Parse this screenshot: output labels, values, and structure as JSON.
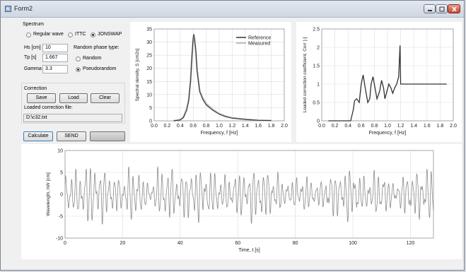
{
  "window": {
    "title": "Form2"
  },
  "spectrum": {
    "group_label": "Spectrum",
    "wave_types": [
      {
        "label": "Regular wave",
        "selected": false
      },
      {
        "label": "ITTC",
        "selected": false
      },
      {
        "label": "JONSWAP",
        "selected": true
      }
    ],
    "hs_label": "Hs [cm]",
    "hs_value": "10",
    "tp_label": "Tp [s]",
    "tp_value": "1.667",
    "gamma_label": "Gamma",
    "gamma_value": "3.3",
    "phase_label": "Random phase type:",
    "phase_options": [
      {
        "label": "Random",
        "selected": false
      },
      {
        "label": "Pseudorandom",
        "selected": true
      }
    ]
  },
  "correction": {
    "group_label": "Correction",
    "save_label": "Save",
    "load_label": "Load",
    "clear_label": "Clear",
    "file_label": "Loaded correction file:",
    "file_value": "D:\\c32.txt"
  },
  "actions": {
    "calculate_label": "Calculate",
    "send_label": "SEND"
  },
  "chart_data": [
    {
      "type": "line",
      "title": "",
      "xlabel": "Frequency, f [Hz]",
      "ylabel": "Spectral density, S [cm2s]",
      "xlim": [
        0,
        2.0
      ],
      "ylim": [
        0,
        35
      ],
      "xticks": [
        "0.0",
        "0.2",
        "0.4",
        "0.6",
        "0.8",
        "1.0",
        "1.2",
        "1.4",
        "1.6",
        "1.8",
        "2.0"
      ],
      "yticks": [
        "0",
        "5",
        "10",
        "15",
        "20",
        "25",
        "30",
        "35"
      ],
      "grid": true,
      "legend": "top-right",
      "series": [
        {
          "name": "Reference",
          "color": "#333333",
          "x": [
            0.3,
            0.4,
            0.45,
            0.5,
            0.53,
            0.56,
            0.58,
            0.6,
            0.61,
            0.62,
            0.64,
            0.66,
            0.7,
            0.75,
            0.8,
            0.9,
            1.0,
            1.1,
            1.2,
            1.4,
            1.6,
            1.8
          ],
          "y": [
            0,
            0.3,
            1.2,
            4.0,
            7.5,
            15,
            24,
            32,
            33,
            32,
            27,
            19,
            11,
            8,
            6,
            4,
            2.5,
            1.6,
            1.0,
            0.5,
            0.2,
            0.1
          ]
        },
        {
          "name": "Measured",
          "color": "#aaaaaa",
          "x": [
            0.3,
            0.4,
            0.45,
            0.5,
            0.53,
            0.56,
            0.58,
            0.6,
            0.61,
            0.62,
            0.64,
            0.66,
            0.7,
            0.75,
            0.8,
            0.9,
            1.0,
            1.1,
            1.2,
            1.4,
            1.6,
            1.8
          ],
          "y": [
            0,
            0.4,
            1.4,
            4.5,
            8.0,
            15.5,
            24.5,
            31,
            32,
            31,
            26.5,
            19.5,
            11.5,
            8.5,
            6.5,
            4.3,
            2.7,
            1.7,
            1.1,
            0.6,
            0.2,
            0.1
          ]
        }
      ]
    },
    {
      "type": "line",
      "title": "",
      "xlabel": "Frequency, f [Hz]",
      "ylabel": "Loaded correction coefficient, Corr [-]",
      "xlim": [
        0,
        2.0
      ],
      "ylim": [
        0,
        2.5
      ],
      "xticks": [
        "0.0",
        "0.2",
        "0.4",
        "0.6",
        "0.8",
        "1.0",
        "1.2",
        "1.4",
        "1.6",
        "1.8",
        "2.0"
      ],
      "yticks": [
        "0",
        "0.5",
        "1",
        "1.5",
        "2",
        "2.5"
      ],
      "grid": true,
      "series": [
        {
          "name": "",
          "color": "#333333",
          "x": [
            0.1,
            0.44,
            0.48,
            0.5,
            0.53,
            0.57,
            0.6,
            0.63,
            0.66,
            0.7,
            0.73,
            0.75,
            0.78,
            0.81,
            0.84,
            0.88,
            0.91,
            0.94,
            0.96,
            0.99,
            1.02,
            1.05,
            1.08,
            1.11,
            1.14,
            1.17,
            1.19,
            1.2,
            1.22,
            1.3,
            1.5,
            1.7,
            1.9
          ],
          "y": [
            0,
            0,
            0.3,
            0.55,
            0.6,
            0.5,
            1.0,
            1.25,
            0.9,
            0.5,
            0.6,
            1.0,
            1.2,
            0.9,
            0.6,
            0.8,
            1.1,
            0.9,
            0.6,
            0.8,
            1.0,
            0.9,
            0.75,
            0.9,
            1.0,
            1.2,
            2.05,
            1.0,
            1.0,
            1.0,
            1.0,
            1.0,
            1.0
          ]
        }
      ]
    },
    {
      "type": "line",
      "title": "",
      "xlabel": "Time, t [s]",
      "ylabel": "Wavelength, hW [cm]",
      "xlim": [
        0,
        128
      ],
      "ylim": [
        -10,
        10
      ],
      "xticks": [
        "0",
        "20",
        "40",
        "60",
        "80",
        "100",
        "120"
      ],
      "yticks": [
        "-10",
        "-5",
        "0",
        "5",
        "10"
      ],
      "grid": true,
      "series": [
        {
          "name": "",
          "color": "#8c8c8c",
          "duration": 128,
          "approx_period": 1.67,
          "amplitude_envelope": [
            5,
            7,
            6,
            4,
            6,
            3,
            6,
            5,
            6,
            5,
            4,
            5,
            6,
            5,
            3,
            4,
            3,
            5,
            6,
            4,
            5,
            3,
            5,
            6
          ]
        }
      ]
    }
  ]
}
